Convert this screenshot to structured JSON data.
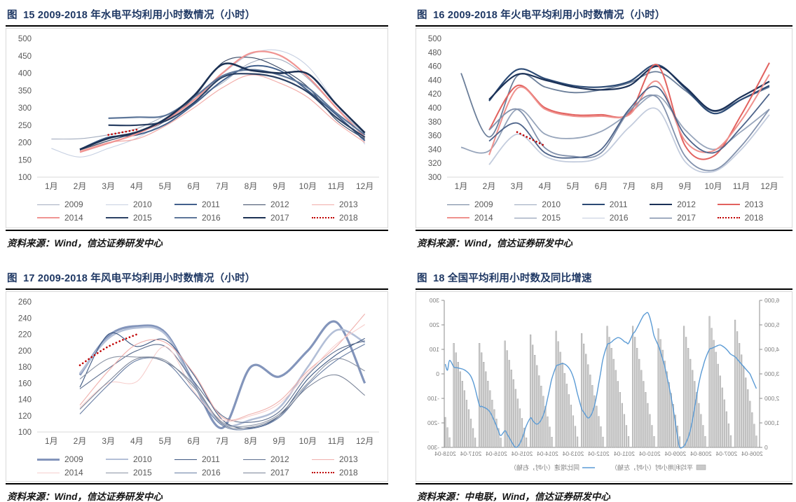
{
  "panels": [
    {
      "title": "图  15 2009-2018 年水电平均利用小时数情况（小时）",
      "source_label": "资料来源：",
      "source": "Wind，信达证券研发中心"
    },
    {
      "title": "图  16 2009-2018 年火电平均利用小时数情况（小时）",
      "source_label": "资料来源：",
      "source": "Wind，信达证券研发中心"
    },
    {
      "title": "图  17 2009-2018 年风电平均利用小时数情况（小时）",
      "source_label": "资料来源：",
      "source": "Wind，信达证券研发中心"
    },
    {
      "title": "图  18 全国平均利用小时数及同比增速",
      "source_label": "资料来源：",
      "source": "中电联，Wind，信达证券研发中心"
    }
  ],
  "chart_data": [
    {
      "type": "line",
      "title": "2009-2018 年水电平均利用小时数情况（小时）",
      "ylim": [
        100,
        500
      ],
      "y_ticks": [
        100,
        150,
        200,
        250,
        300,
        350,
        400,
        450,
        500
      ],
      "x_labels": [
        "1月",
        "2月",
        "3月",
        "4月",
        "5月",
        "6月",
        "7月",
        "8月",
        "9月",
        "10月",
        "11月",
        "12月"
      ],
      "axis_color": "#D9D9D9",
      "label_color": "#595959",
      "series": [
        {
          "name": "2009",
          "color": "#A3ADBF",
          "width": 1.1,
          "values": [
            210,
            211,
            222,
            240,
            278,
            325,
            372,
            430,
            440,
            385,
            300,
            225
          ]
        },
        {
          "name": "2010",
          "color": "#C7D0E2",
          "width": 1.1,
          "values": [
            183,
            158,
            183,
            213,
            262,
            330,
            398,
            455,
            465,
            420,
            310,
            195
          ]
        },
        {
          "name": "2011",
          "color": "#42608C",
          "width": 2.0,
          "values": [
            null,
            180,
            215,
            222,
            252,
            310,
            378,
            420,
            408,
            350,
            280,
            205
          ]
        },
        {
          "name": "2012",
          "color": "#3A4A66",
          "width": 1.2,
          "values": [
            null,
            178,
            205,
            228,
            262,
            330,
            430,
            445,
            415,
            360,
            265,
            210
          ]
        },
        {
          "name": "2013",
          "color": "#F2ACA8",
          "width": 1.2,
          "values": [
            null,
            175,
            200,
            210,
            248,
            300,
            358,
            395,
            372,
            330,
            258,
            200
          ]
        },
        {
          "name": "2014",
          "color": "#F09492",
          "width": 2.2,
          "values": [
            null,
            172,
            198,
            225,
            265,
            322,
            400,
            458,
            452,
            390,
            300,
            215
          ]
        },
        {
          "name": "2015",
          "color": "#2B4164",
          "width": 2.2,
          "values": [
            null,
            null,
            250,
            250,
            262,
            315,
            388,
            398,
            385,
            345,
            272,
            215
          ]
        },
        {
          "name": "2016",
          "color": "#5D7699",
          "width": 2.2,
          "values": [
            null,
            null,
            270,
            273,
            278,
            330,
            392,
            410,
            395,
            358,
            285,
            222
          ]
        },
        {
          "name": "2017",
          "color": "#1C3154",
          "width": 2.6,
          "values": [
            null,
            180,
            212,
            230,
            268,
            335,
            425,
            408,
            400,
            398,
            310,
            228
          ]
        },
        {
          "name": "2018",
          "color": "#C00000",
          "width": 2.6,
          "dash": true,
          "values": [
            null,
            null,
            222,
            237,
            null,
            null,
            null,
            null,
            null,
            null,
            null,
            null
          ]
        }
      ]
    },
    {
      "type": "line",
      "title": "2009-2018 年火电平均利用小时数情况（小时）",
      "ylim": [
        300,
        500
      ],
      "y_ticks": [
        300,
        320,
        340,
        360,
        380,
        400,
        420,
        440,
        460,
        480,
        500
      ],
      "x_labels": [
        "1月",
        "2月",
        "3月",
        "4月",
        "5月",
        "6月",
        "7月",
        "8月",
        "9月",
        "10月",
        "11月",
        "12月"
      ],
      "axis_color": "#D9D9D9",
      "label_color": "#595959",
      "series": [
        {
          "name": "2009",
          "color": "#6B7E99",
          "width": 1.8,
          "values": [
            450,
            358,
            446,
            430,
            422,
            426,
            436,
            452,
            425,
            395,
            412,
            430
          ]
        },
        {
          "name": "2010",
          "color": "#97A5BB",
          "width": 1.8,
          "values": [
            343,
            338,
            398,
            362,
            356,
            366,
            392,
            418,
            368,
            340,
            366,
            398
          ]
        },
        {
          "name": "2011",
          "color": "#2C4A74",
          "width": 2.2,
          "values": [
            null,
            410,
            455,
            442,
            432,
            430,
            438,
            462,
            428,
            392,
            412,
            432
          ]
        },
        {
          "name": "2012",
          "color": "#1B3157",
          "width": 2.2,
          "values": [
            null,
            412,
            448,
            440,
            430,
            426,
            432,
            460,
            430,
            396,
            416,
            438
          ]
        },
        {
          "name": "2013",
          "color": "#E2625F",
          "width": 2.0,
          "values": [
            null,
            368,
            432,
            400,
            390,
            390,
            392,
            462,
            345,
            330,
            390,
            465
          ]
        },
        {
          "name": "2014",
          "color": "#EF918D",
          "width": 2.0,
          "values": [
            null,
            332,
            428,
            398,
            388,
            388,
            390,
            438,
            352,
            338,
            382,
            448
          ]
        },
        {
          "name": "2015",
          "color": "#8291AC",
          "width": 1.8,
          "values": [
            null,
            368,
            398,
            342,
            330,
            335,
            395,
            415,
            330,
            310,
            345,
            398
          ]
        },
        {
          "name": "2016",
          "color": "#C3CCDD",
          "width": 1.8,
          "values": [
            null,
            318,
            362,
            330,
            322,
            330,
            372,
            398,
            322,
            308,
            340,
            390
          ]
        },
        {
          "name": "2017",
          "color": "#4E648A",
          "width": 1.8,
          "values": [
            null,
            352,
            378,
            335,
            328,
            340,
            398,
            430,
            360,
            335,
            372,
            420
          ]
        },
        {
          "name": "2018",
          "color": "#C00000",
          "width": 2.6,
          "dash": true,
          "values": [
            null,
            null,
            365,
            345,
            null,
            null,
            null,
            null,
            null,
            null,
            null,
            null
          ]
        }
      ]
    },
    {
      "type": "line",
      "title": "2009-2018 年风电平均利用小时数情况（小时）",
      "ylim": [
        100,
        260
      ],
      "y_ticks": [
        100,
        120,
        140,
        160,
        180,
        200,
        220,
        240,
        260
      ],
      "x_labels": [
        "1月",
        "2月",
        "3月",
        "4月",
        "5月",
        "6月",
        "7月",
        "8月",
        "9月",
        "10月",
        "11月",
        "12月"
      ],
      "axis_color": "#D9D9D9",
      "label_color": "#595959",
      "series": [
        {
          "name": "2009",
          "color": "#8395BB",
          "width": 3.2,
          "values": [
            null,
            170,
            218,
            230,
            222,
            160,
            105,
            180,
            168,
            200,
            235,
            160
          ]
        },
        {
          "name": "2010",
          "color": "#B3BFD7",
          "width": 2.6,
          "values": [
            null,
            172,
            215,
            228,
            220,
            158,
            110,
            115,
            130,
            180,
            225,
            210
          ]
        },
        {
          "name": "2011",
          "color": "#3D5781",
          "width": 1.1,
          "values": [
            null,
            155,
            220,
            205,
            213,
            170,
            115,
            105,
            120,
            165,
            195,
            215
          ]
        },
        {
          "name": "2012",
          "color": "#5C6E8E",
          "width": 1.1,
          "values": [
            null,
            153,
            178,
            200,
            205,
            162,
            120,
            112,
            125,
            170,
            200,
            212
          ]
        },
        {
          "name": "2013",
          "color": "#F0B0AC",
          "width": 1.1,
          "values": [
            null,
            133,
            175,
            208,
            210,
            172,
            118,
            122,
            138,
            175,
            205,
            245
          ]
        },
        {
          "name": "2014",
          "color": "#F7CFCD",
          "width": 1.1,
          "values": [
            null,
            130,
            160,
            162,
            205,
            150,
            115,
            120,
            135,
            172,
            208,
            232
          ]
        },
        {
          "name": "2015",
          "color": "#8A93A4",
          "width": 1.1,
          "values": [
            null,
            165,
            190,
            192,
            188,
            155,
            112,
            108,
            122,
            160,
            190,
            175
          ]
        },
        {
          "name": "2016",
          "color": "#677DA3",
          "width": 1.1,
          "values": [
            null,
            122,
            158,
            188,
            186,
            148,
            108,
            104,
            118,
            158,
            188,
            208
          ]
        },
        {
          "name": "2017",
          "color": "#7A8498",
          "width": 1.1,
          "values": [
            null,
            128,
            162,
            190,
            186,
            158,
            110,
            106,
            120,
            155,
            170,
            145
          ]
        },
        {
          "name": "2018",
          "color": "#C00000",
          "width": 2.6,
          "dash": true,
          "values": [
            null,
            182,
            205,
            220,
            null,
            null,
            null,
            null,
            null,
            null,
            null,
            null
          ]
        }
      ]
    },
    {
      "type": "combo_bar_line",
      "title": "全国平均利用小时数及同比增速",
      "mirrored": true,
      "left_axis": {
        "max": 6000,
        "ticks": [
          0,
          1000,
          2000,
          3000,
          4000,
          5000,
          6000
        ],
        "labels": [
          "0",
          "1,000",
          "2,000",
          "3,000",
          "4,000",
          "5,000",
          "6,000"
        ]
      },
      "right_axis": {
        "min": -300,
        "max": 300,
        "ticks": [
          -300,
          -200,
          -100,
          0,
          100,
          200,
          300
        ],
        "labels": [
          "-300",
          "-200",
          "-100",
          "0",
          "100",
          "200",
          "300"
        ]
      },
      "x_tick_labels": [
        "2006-04",
        "2007-04",
        "2008-04",
        "2009-04",
        "2010-04",
        "2011-04",
        "2012-04",
        "2013-04",
        "2014-04",
        "2015-04",
        "2016-04",
        "2017-04",
        "2018-04"
      ],
      "axis_color": "#8C8C8C",
      "label_color": "#808080",
      "bars": {
        "fill": "#C9C9C9",
        "stroke": "#9E9E9E",
        "years": [
          "2006",
          "2007",
          "2008",
          "2009",
          "2010",
          "2011",
          "2012",
          "2013",
          "2014",
          "2015",
          "2016",
          "2017",
          "2018"
        ],
        "values": [
          [
            470,
            950,
            1420,
            1890,
            2360,
            2840,
            3310,
            3780,
            4250,
            4730,
            5200
          ],
          [
            485,
            970,
            1460,
            1945,
            2430,
            2920,
            3400,
            3890,
            4375,
            4865,
            5350
          ],
          [
            450,
            900,
            1350,
            1800,
            2250,
            2700,
            3150,
            3600,
            4050,
            4500,
            4950
          ],
          [
            440,
            880,
            1320,
            1760,
            2210,
            2650,
            3090,
            3530,
            3970,
            4410,
            4850
          ],
          [
            450,
            900,
            1350,
            1800,
            2250,
            2700,
            3150,
            3600,
            4050,
            4500,
            4950
          ],
          [
            450,
            900,
            1350,
            1800,
            2250,
            2700,
            3150,
            3600,
            4050,
            4500,
            4950
          ],
          [
            425,
            845,
            1270,
            1690,
            2115,
            2535,
            2960,
            3380,
            3805,
            4225,
            4650
          ],
          [
            430,
            865,
            1295,
            1730,
            2160,
            2590,
            3025,
            3455,
            3890,
            4320,
            4750
          ],
          [
            420,
            835,
            1255,
            1675,
            2090,
            2510,
            2930,
            3345,
            3765,
            4180,
            4600
          ],
          [
            395,
            790,
            1185,
            1580,
            1980,
            2375,
            2770,
            3165,
            3560,
            3955,
            4350
          ],
          [
            385,
            775,
            1160,
            1545,
            1930,
            2320,
            2705,
            3090,
            3480,
            3865,
            4250
          ],
          [
            385,
            775,
            1160,
            1545,
            1930,
            2320,
            2705,
            3090,
            3480,
            3865,
            4250
          ],
          [
            400,
            810,
            1230
          ]
        ]
      },
      "line": {
        "color": "#5B9BD5",
        "values": [
          [
            -60,
            -40,
            -20,
            0,
            10,
            20,
            30,
            40,
            50,
            60,
            70
          ],
          [
            80,
            90,
            100,
            108,
            114,
            118,
            116,
            112,
            108,
            104,
            100
          ],
          [
            60,
            30,
            0,
            -40,
            -90,
            -140,
            -190,
            -230,
            -260,
            -280,
            -295
          ],
          [
            -300,
            -255,
            -200,
            -145,
            -95,
            -50,
            -10,
            30,
            60,
            90,
            115
          ],
          [
            155,
            195,
            230,
            250,
            246,
            238,
            222,
            205,
            188,
            172,
            162
          ],
          [
            125,
            128,
            132,
            140,
            146,
            148,
            144,
            138,
            130,
            124,
            118
          ],
          [
            60,
            10,
            -40,
            -90,
            -130,
            -158,
            -174,
            -180,
            -170,
            -156,
            -142
          ],
          [
            -80,
            -42,
            -12,
            10,
            24,
            34,
            40,
            42,
            40,
            36,
            30
          ],
          [
            -20,
            -60,
            -100,
            -140,
            -168,
            -188,
            -200,
            -205,
            -200,
            -190,
            -180
          ],
          [
            -212,
            -240,
            -264,
            -284,
            -296,
            -300,
            -290,
            -276,
            -260,
            -246,
            -232
          ],
          [
            -252,
            -234,
            -212,
            -192,
            -172,
            -156,
            -146,
            -140,
            -136,
            -132,
            -128
          ],
          [
            -60,
            -30,
            -10,
            2,
            10,
            16,
            20,
            22,
            24,
            26,
            28
          ],
          [
            55,
            15,
            40
          ]
        ]
      },
      "legend": [
        {
          "marker": "bar",
          "label": "平均利用小时（小时，左轴）"
        },
        {
          "marker": "line",
          "label": "同比增速（小时，右轴）"
        }
      ]
    }
  ]
}
